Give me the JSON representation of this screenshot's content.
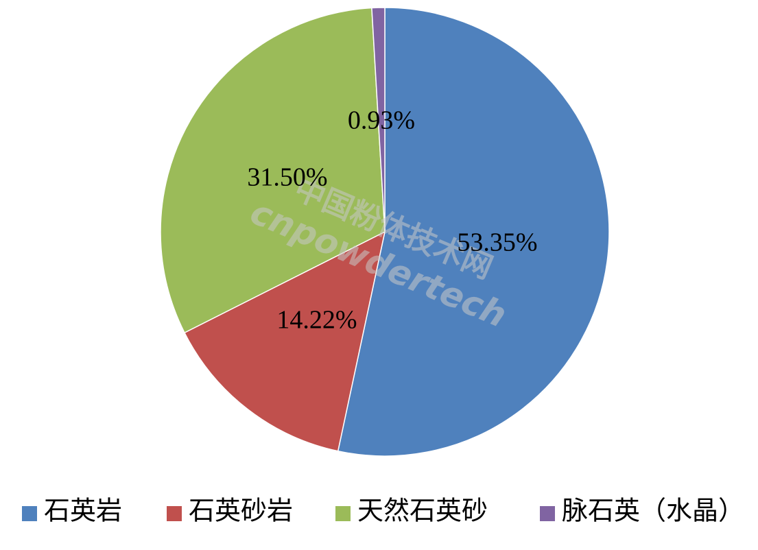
{
  "chart_data": {
    "type": "pie",
    "title": "",
    "slices": [
      {
        "label": "石英岩",
        "value": 53.35,
        "display": "53.35%",
        "color": "#4f81bd"
      },
      {
        "label": "石英砂岩",
        "value": 14.22,
        "display": "14.22%",
        "color": "#c0504d"
      },
      {
        "label": "天然石英砂",
        "value": 31.5,
        "display": "31.50%",
        "color": "#9bbb59"
      },
      {
        "label": "脉石英（水晶）",
        "value": 0.93,
        "display": "0.93%",
        "color": "#8064a2"
      }
    ],
    "start_angle_deg": 0,
    "direction": "clockwise",
    "legend_position": "bottom",
    "data_labels": true
  },
  "watermark": {
    "line1": "中国粉体技术网",
    "line2": "cnpowdertech"
  }
}
